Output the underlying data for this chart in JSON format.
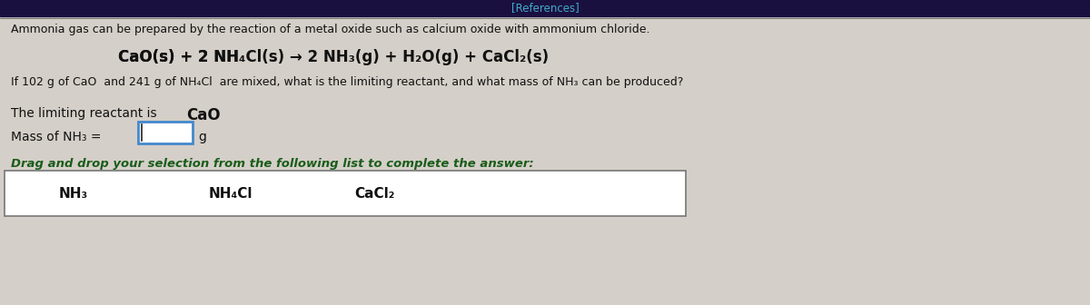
{
  "background_color": "#d4cfc8",
  "top_bar_color": "#1a1040",
  "top_bar_height": 18,
  "references_text": "[References]",
  "references_color": "#44aacc",
  "intro_text": "Ammonia gas can be prepared by the reaction of a metal oxide such as calcium oxide with ammonium chloride.",
  "equation_parts": [
    {
      "text": "CaO(s) + 2 NH",
      "style": "normal"
    },
    {
      "text": "4",
      "style": "sub"
    },
    {
      "text": "Cl(s) → 2 NH",
      "style": "normal"
    },
    {
      "text": "3",
      "style": "sub"
    },
    {
      "text": "(g) + H",
      "style": "normal"
    },
    {
      "text": "2",
      "style": "sub"
    },
    {
      "text": "O(g) + CaCl",
      "style": "normal"
    },
    {
      "text": "2",
      "style": "sub"
    },
    {
      "text": "(s)",
      "style": "normal"
    }
  ],
  "question_line1": "If 102 g of CaO and 241 g of NH",
  "question_sub1": "4",
  "question_line2": "Cl are mixed, what is the limiting reactant, and what mass of NH",
  "question_sub2": "3",
  "question_line3": " can be produced?",
  "limiting_label": "The limiting reactant is",
  "limiting_answer": "CaO",
  "mass_label_parts": [
    {
      "text": "Mass of NH",
      "style": "normal"
    },
    {
      "text": "3",
      "style": "sub"
    },
    {
      "text": " =",
      "style": "normal"
    }
  ],
  "mass_unit": "g",
  "drag_drop_instruction": "Drag and drop your selection from the following list to complete the answer:",
  "drag_drop_color": "#1a5c1a",
  "options": [
    [
      {
        "text": "NH",
        "style": "normal"
      },
      {
        "text": "3",
        "style": "sub"
      }
    ],
    [
      {
        "text": "NH",
        "style": "normal"
      },
      {
        "text": "4",
        "style": "sub"
      },
      {
        "text": "Cl",
        "style": "normal"
      }
    ],
    [
      {
        "text": "CaCl",
        "style": "normal"
      },
      {
        "text": "2",
        "style": "sub"
      }
    ]
  ],
  "box_bg": "#ffffff",
  "text_color": "#111111",
  "input_box_border": "#4488cc",
  "bottom_box_border": "#777777",
  "fig_width": 12.0,
  "fig_height": 3.36,
  "dpi": 100
}
